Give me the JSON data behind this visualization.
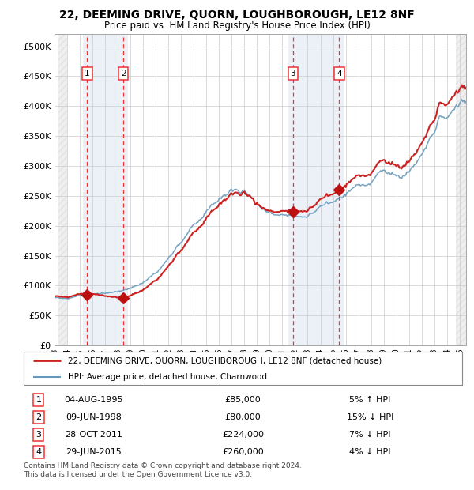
{
  "title": "22, DEEMING DRIVE, QUORN, LOUGHBOROUGH, LE12 8NF",
  "subtitle": "Price paid vs. HM Land Registry's House Price Index (HPI)",
  "ylim": [
    0,
    520000
  ],
  "xlim_start": 1993.3,
  "xlim_end": 2025.5,
  "yticks": [
    0,
    50000,
    100000,
    150000,
    200000,
    250000,
    300000,
    350000,
    400000,
    450000,
    500000
  ],
  "ytick_labels": [
    "£0",
    "£50K",
    "£100K",
    "£150K",
    "£200K",
    "£250K",
    "£300K",
    "£350K",
    "£400K",
    "£450K",
    "£500K"
  ],
  "xtick_years": [
    1993,
    1994,
    1995,
    1996,
    1997,
    1998,
    1999,
    2000,
    2001,
    2002,
    2003,
    2004,
    2005,
    2006,
    2007,
    2008,
    2009,
    2010,
    2011,
    2012,
    2013,
    2014,
    2015,
    2016,
    2017,
    2018,
    2019,
    2020,
    2021,
    2022,
    2023,
    2024,
    2025
  ],
  "hpi_color": "#6699BB",
  "price_color": "#CC2222",
  "dashed_line_color": "#EE3333",
  "sale_marker_color": "#BB1111",
  "grid_color": "#CCCCCC",
  "bg_color": "#FFFFFF",
  "transactions": [
    {
      "num": 1,
      "date": 1995.585,
      "price": 85000,
      "label": "04-AUG-1995",
      "price_str": "£85,000",
      "pct": "5% ↑ HPI"
    },
    {
      "num": 2,
      "date": 1998.44,
      "price": 80000,
      "label": "09-JUN-1998",
      "price_str": "£80,000",
      "pct": "15% ↓ HPI"
    },
    {
      "num": 3,
      "date": 2011.83,
      "price": 224000,
      "label": "28-OCT-2011",
      "price_str": "£224,000",
      "pct": "7% ↓ HPI"
    },
    {
      "num": 4,
      "date": 2015.49,
      "price": 260000,
      "label": "29-JUN-2015",
      "price_str": "£260,000",
      "pct": "4% ↓ HPI"
    }
  ],
  "legend_property_label": "22, DEEMING DRIVE, QUORN, LOUGHBOROUGH, LE12 8NF (detached house)",
  "legend_hpi_label": "HPI: Average price, detached house, Charnwood",
  "footer_line1": "Contains HM Land Registry data © Crown copyright and database right 2024.",
  "footer_line2": "This data is licensed under the Open Government Licence v3.0.",
  "hpi_base": 79000,
  "hpi_seed": 17,
  "prop_seed": 99
}
